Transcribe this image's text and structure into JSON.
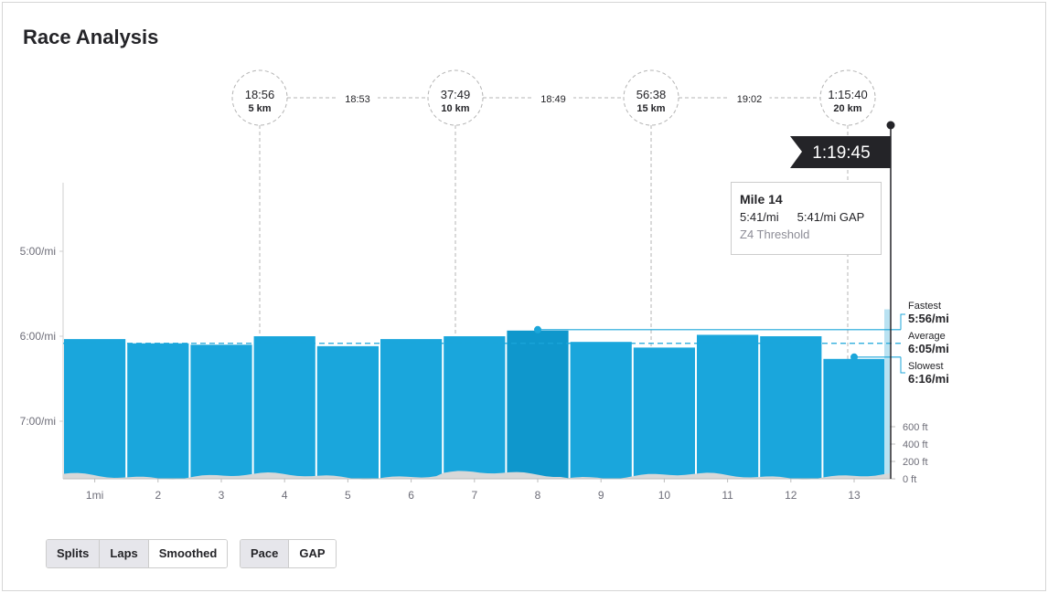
{
  "title": "Race Analysis",
  "tooltip": {
    "title": "Mile 14",
    "pace": "5:41/mi",
    "gap": "5:41/mi GAP",
    "zone": "Z4 Threshold"
  },
  "finish_time": "1:19:45",
  "checkpoints": [
    {
      "time": "18:56",
      "label": "5 km"
    },
    {
      "time": "37:49",
      "label": "10 km"
    },
    {
      "time": "56:38",
      "label": "15 km"
    },
    {
      "time": "1:15:40",
      "label": "20 km"
    }
  ],
  "segments": [
    "18:53",
    "18:49",
    "19:02"
  ],
  "summary": {
    "fastest_label": "Fastest",
    "fastest_value": "5:56/mi",
    "average_label": "Average",
    "average_value": "6:05/mi",
    "slowest_label": "Slowest",
    "slowest_value": "6:16/mi"
  },
  "split_buttons": [
    {
      "label": "Splits",
      "active": true
    },
    {
      "label": "Laps",
      "active": false
    },
    {
      "label": "Smoothed",
      "active": false
    }
  ],
  "metric_buttons": [
    {
      "label": "Pace",
      "active": true
    },
    {
      "label": "GAP",
      "active": false
    }
  ],
  "colors": {
    "bar": "#1aa6dc",
    "bar_dark": "#0f97cc",
    "average_line": "#1ba6da",
    "elevation": "#d8d8d8",
    "flag": "#242428"
  },
  "chart_data": {
    "type": "bar",
    "categories": [
      "1mi",
      "2",
      "3",
      "4",
      "5",
      "6",
      "7",
      "8",
      "9",
      "10",
      "11",
      "12",
      "13"
    ],
    "series": [
      {
        "values": [
          362,
          365,
          366,
          360,
          367,
          362,
          360,
          356,
          364,
          368,
          359,
          360,
          376
        ]
      }
    ],
    "extra_bar_value": 341,
    "y_ticks": [
      {
        "value": 300,
        "label": "5:00/mi"
      },
      {
        "value": 360,
        "label": "6:00/mi"
      },
      {
        "value": 420,
        "label": "7:00/mi"
      }
    ],
    "average": 365,
    "fastest_mile": 8,
    "fastest": 356,
    "slowest_mile": 13,
    "slowest": 376,
    "elevation_ticks": [
      "600 ft",
      "400 ft",
      "200 ft",
      "0 ft"
    ],
    "ylabel": "",
    "xlabel": ""
  }
}
